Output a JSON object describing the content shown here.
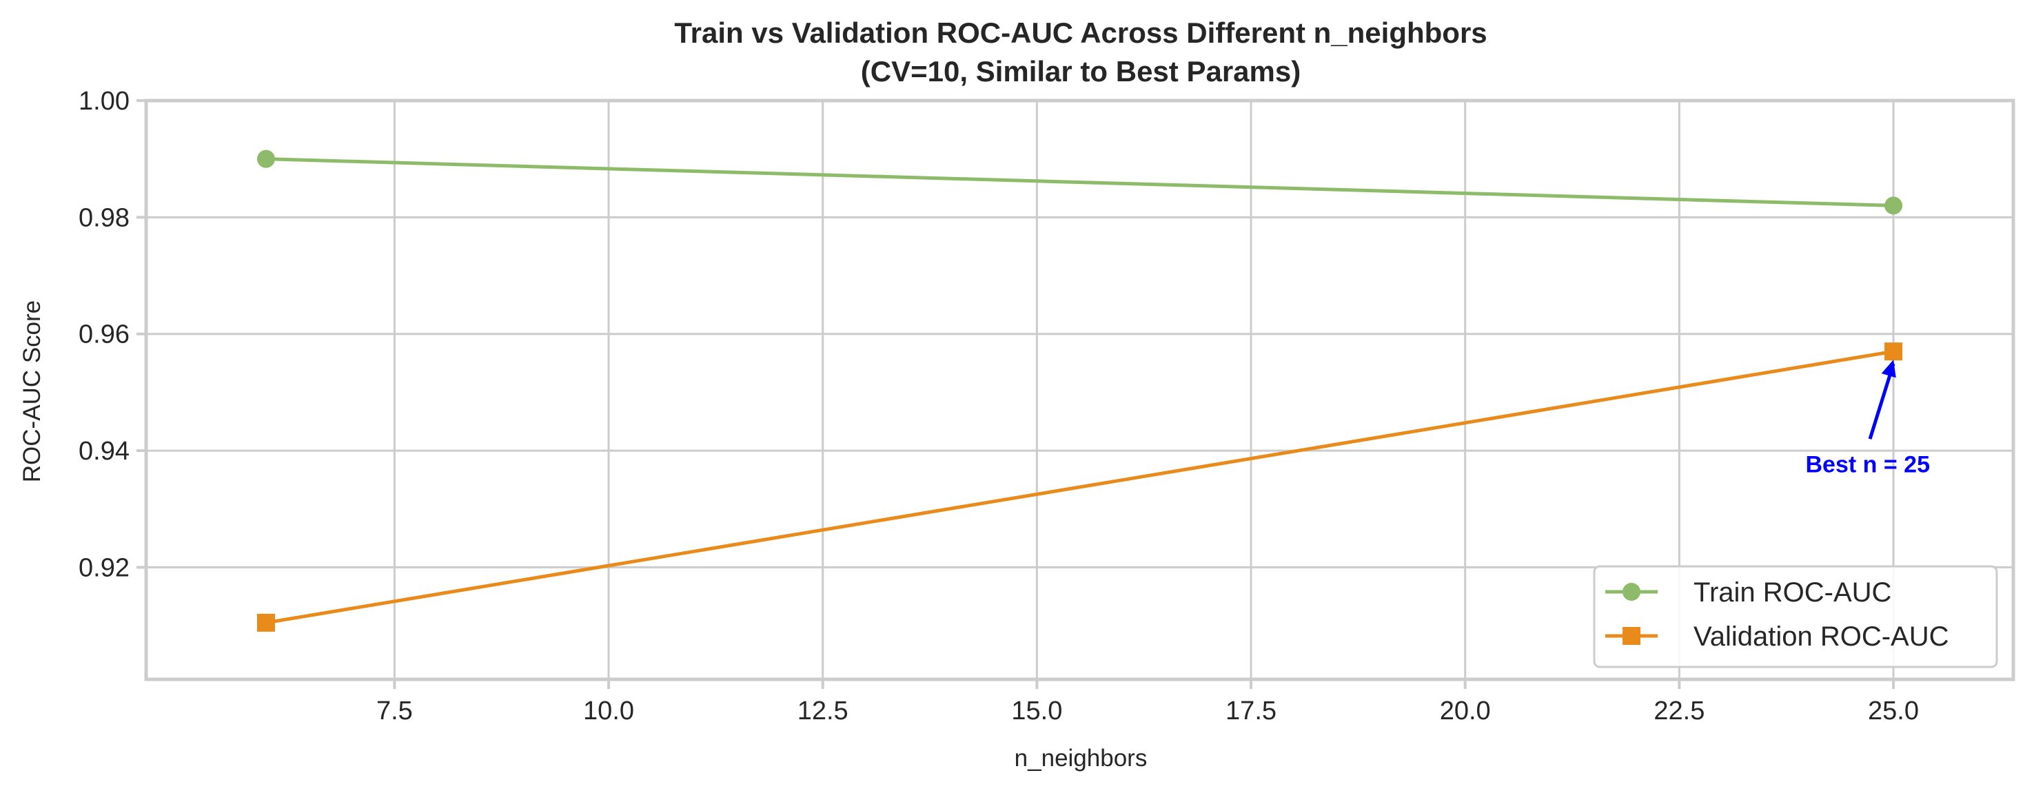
{
  "chart_data": {
    "type": "line",
    "title": "Train vs Validation ROC-AUC Across Different n_neighbors",
    "subtitle": "(CV=10, Similar to Best Params)",
    "xlabel": "n_neighbors",
    "ylabel": "ROC-AUC Score",
    "x": [
      6,
      25
    ],
    "xlim": [
      4.6,
      26.4
    ],
    "ylim": [
      0.9008,
      1.0
    ],
    "xticks": [
      7.5,
      10.0,
      12.5,
      15.0,
      17.5,
      20.0,
      22.5,
      25.0
    ],
    "xtick_labels": [
      "7.5",
      "10.0",
      "12.5",
      "15.0",
      "17.5",
      "20.0",
      "22.5",
      "25.0"
    ],
    "yticks": [
      0.92,
      0.94,
      0.96,
      0.98,
      1.0
    ],
    "ytick_labels": [
      "0.92",
      "0.94",
      "0.96",
      "0.98",
      "1.00"
    ],
    "grid": true,
    "legend_position": "lower-right",
    "series": [
      {
        "name": "Train ROC-AUC",
        "values": [
          0.99,
          0.982
        ],
        "color": "#8dbb6a",
        "marker": "circle"
      },
      {
        "name": "Validation ROC-AUC",
        "values": [
          0.9105,
          0.957
        ],
        "color": "#e88b1a",
        "marker": "square"
      }
    ],
    "annotations": [
      {
        "text": "Best n = 25",
        "x": 25,
        "y": 0.957,
        "text_x": 24.7,
        "text_y": 0.9377,
        "color": "#0000ff"
      }
    ]
  }
}
